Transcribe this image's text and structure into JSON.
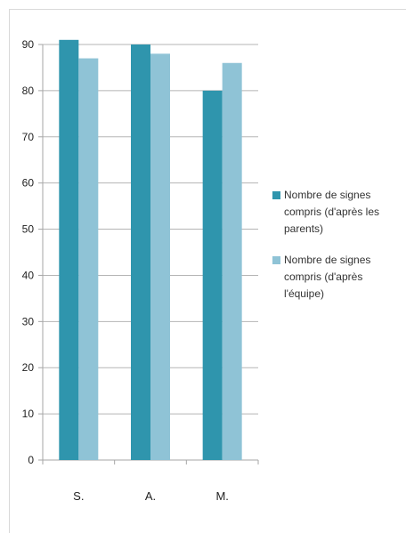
{
  "chart_data": {
    "type": "bar",
    "title": "",
    "xlabel": "",
    "ylabel": "",
    "categories": [
      "S.",
      "A.",
      "M."
    ],
    "series": [
      {
        "name": "Nombre de signes compris (d'après les parents)",
        "values": [
          91,
          90,
          80
        ],
        "color": "#2f95ad"
      },
      {
        "name": "Nombre de signes compris (d'après l'équipe)",
        "values": [
          87,
          88,
          86
        ],
        "color": "#8fc3d6"
      }
    ],
    "ylim": [
      0,
      90
    ],
    "yticks": [
      0,
      10,
      20,
      30,
      40,
      50,
      60,
      70,
      80,
      90
    ],
    "grid": true,
    "legend": "right"
  }
}
